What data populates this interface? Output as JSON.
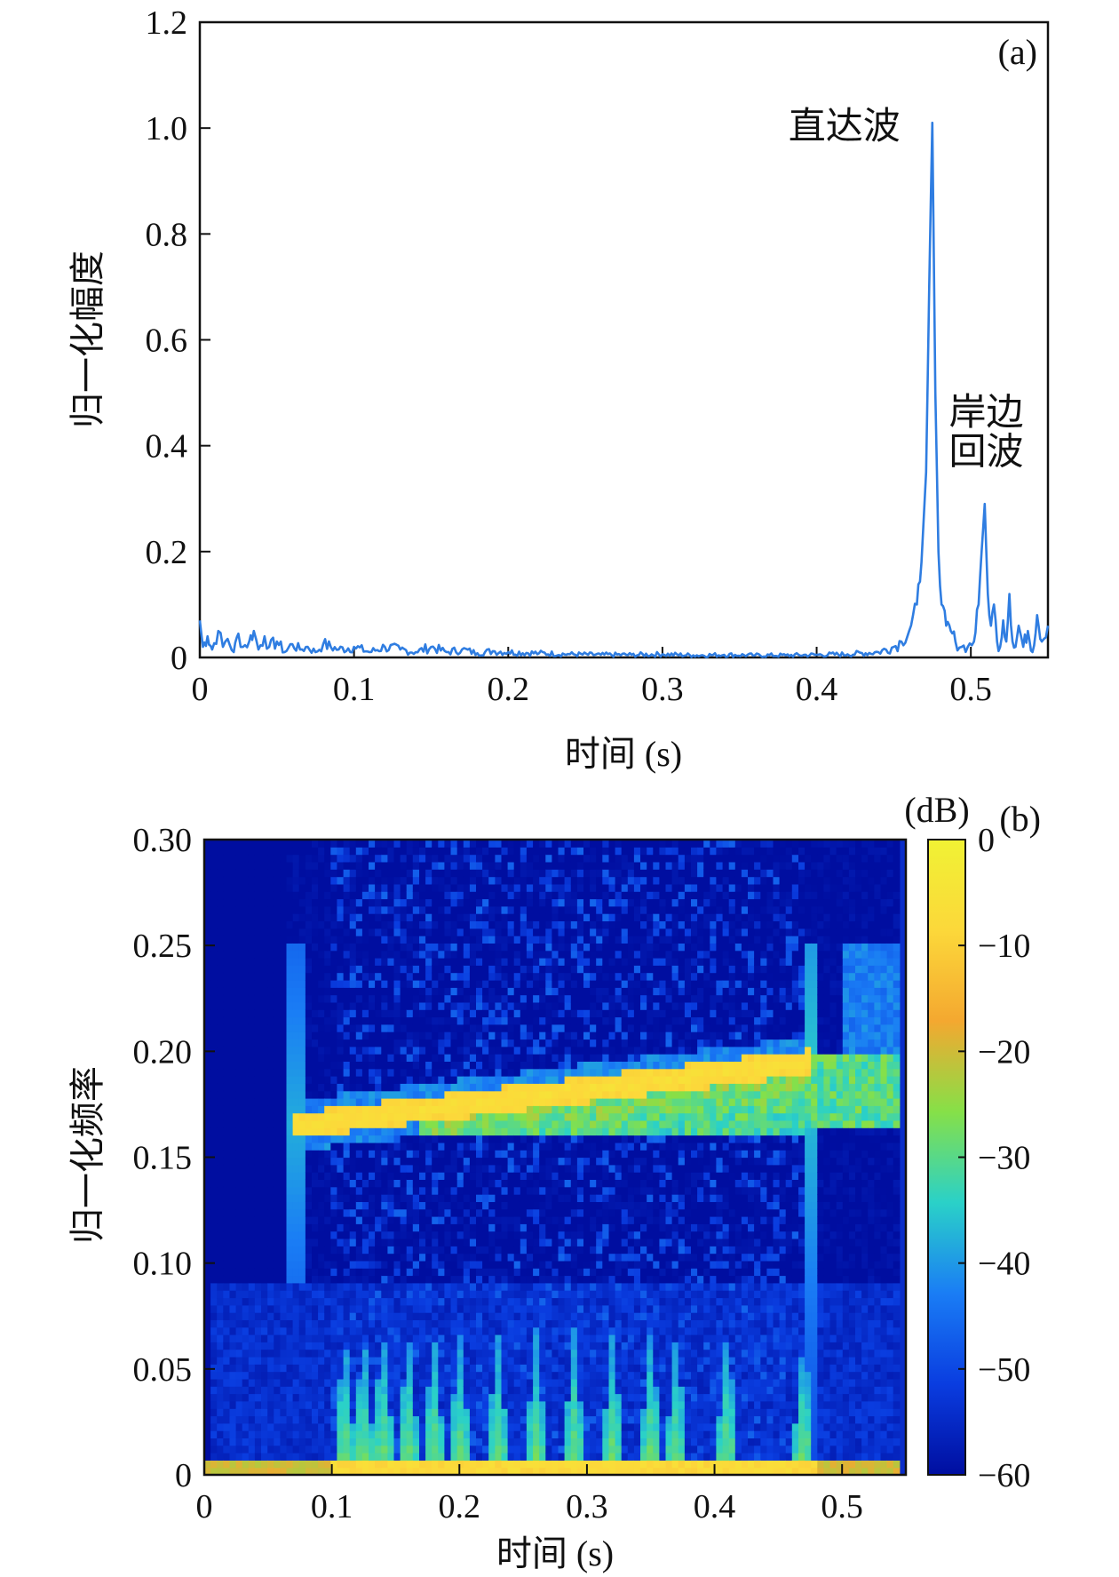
{
  "chart_data": [
    {
      "type": "line",
      "panel_label": "(a)",
      "xlabel": "时间 (s)",
      "ylabel": "归一化幅度",
      "xlim": [
        0,
        0.55
      ],
      "ylim": [
        0,
        1.2
      ],
      "x_ticks": [
        "0",
        "0.1",
        "0.2",
        "0.3",
        "0.4",
        "0.5"
      ],
      "y_ticks": [
        "0",
        "0.2",
        "0.4",
        "0.6",
        "0.8",
        "1.0",
        "1.2"
      ],
      "grid": false,
      "line_color": "#2f7de1",
      "annotations": [
        {
          "text": "直达波",
          "x": 0.418,
          "y": 0.98
        },
        {
          "text": "岸边",
          "x": 0.51,
          "y": 0.44
        },
        {
          "text": "回波",
          "x": 0.51,
          "y": 0.365
        }
      ],
      "series": [
        {
          "x": [
            0,
            0.002,
            0.005,
            0.008,
            0.012,
            0.015,
            0.018,
            0.022,
            0.025,
            0.028,
            0.032,
            0.035,
            0.038,
            0.042,
            0.045,
            0.05,
            0.055,
            0.06,
            0.065,
            0.07,
            0.075,
            0.08,
            0.09,
            0.1,
            0.11,
            0.12,
            0.13,
            0.14,
            0.15,
            0.16,
            0.17,
            0.18,
            0.19,
            0.2,
            0.22,
            0.24,
            0.26,
            0.28,
            0.3,
            0.32,
            0.34,
            0.36,
            0.38,
            0.4,
            0.42,
            0.44,
            0.45,
            0.455,
            0.46,
            0.465,
            0.468,
            0.471,
            0.473,
            0.475,
            0.477,
            0.479,
            0.481,
            0.484,
            0.487,
            0.49,
            0.494,
            0.498,
            0.502,
            0.505,
            0.507,
            0.509,
            0.511,
            0.513,
            0.515,
            0.517,
            0.519,
            0.521,
            0.523,
            0.525,
            0.527,
            0.529,
            0.531,
            0.534,
            0.537,
            0.54,
            0.543,
            0.546,
            0.55
          ],
          "y": [
            0.07,
            0.02,
            0.04,
            0.015,
            0.05,
            0.02,
            0.035,
            0.01,
            0.045,
            0.02,
            0.03,
            0.05,
            0.015,
            0.04,
            0.02,
            0.03,
            0.01,
            0.025,
            0.015,
            0.02,
            0.01,
            0.025,
            0.015,
            0.02,
            0.01,
            0.02,
            0.015,
            0.01,
            0.02,
            0.01,
            0.015,
            0.008,
            0.012,
            0.01,
            0.008,
            0.006,
            0.005,
            0.005,
            0.006,
            0.004,
            0.005,
            0.004,
            0.004,
            0.005,
            0.006,
            0.01,
            0.02,
            0.03,
            0.05,
            0.1,
            0.18,
            0.35,
            0.7,
            1.01,
            0.5,
            0.2,
            0.1,
            0.06,
            0.05,
            0.03,
            0.02,
            0.02,
            0.03,
            0.1,
            0.2,
            0.29,
            0.12,
            0.06,
            0.1,
            0.03,
            0.02,
            0.07,
            0.03,
            0.12,
            0.03,
            0.02,
            0.06,
            0.02,
            0.05,
            0.01,
            0.08,
            0.03,
            0.06
          ]
        }
      ]
    },
    {
      "type": "heatmap",
      "panel_label": "(b)",
      "xlabel": "时间 (s)",
      "ylabel": "归一化频率",
      "xlim": [
        0,
        0.55
      ],
      "ylim": [
        0,
        0.3
      ],
      "x_ticks": [
        "0",
        "0.1",
        "0.2",
        "0.3",
        "0.4",
        "0.5"
      ],
      "y_ticks": [
        "0",
        "0.05",
        "0.10",
        "0.15",
        "0.20",
        "0.25",
        "0.30"
      ],
      "colorbar": {
        "unit": "(dB)",
        "range": [
          -60,
          0
        ],
        "ticks": [
          "0",
          "−10",
          "−20",
          "−30",
          "−40",
          "−50",
          "−60"
        ],
        "colors": [
          "#000ea0",
          "#0a3de0",
          "#1a7df5",
          "#2ad1c8",
          "#86e048",
          "#f4a830",
          "#fcd83a",
          "#f0f234"
        ]
      },
      "features": [
        {
          "name": "main-chirp",
          "t_start": 0.07,
          "t_end": 0.475,
          "f_start": 0.165,
          "f_end": 0.195,
          "level_db": -8
        },
        {
          "name": "echo-chirp",
          "t_start": 0.475,
          "t_end": 0.545,
          "f_low": 0.165,
          "f_high": 0.2,
          "level_db": -25
        },
        {
          "name": "direct-wave-streak",
          "t": 0.475,
          "f_low": 0,
          "f_high": 0.25,
          "level_db": -35
        },
        {
          "name": "onset-streak",
          "t": 0.072,
          "f_low": 0.09,
          "f_high": 0.25,
          "level_db": -38
        },
        {
          "name": "dc-band",
          "t_start": 0,
          "t_end": 0.545,
          "f_low": 0,
          "f_high": 0.008,
          "level_db": -12
        },
        {
          "name": "low-freq-bursts",
          "t": [
            0.11,
            0.125,
            0.14,
            0.16,
            0.18,
            0.2,
            0.23,
            0.26,
            0.29,
            0.32,
            0.35,
            0.37,
            0.41,
            0.47
          ],
          "f_high": 0.07,
          "level_db": -28
        }
      ]
    }
  ]
}
